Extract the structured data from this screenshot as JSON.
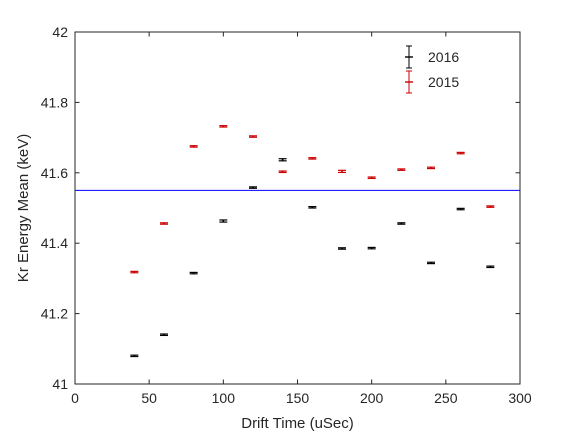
{
  "chart_data": {
    "type": "scatter",
    "title": "",
    "xlabel": "Drift Time (uSec)",
    "ylabel": "Kr Energy Mean (keV)",
    "xlim": [
      0,
      300
    ],
    "ylim": [
      41,
      42
    ],
    "xticks": [
      0,
      50,
      100,
      150,
      200,
      250,
      300
    ],
    "yticks": [
      41,
      41.2,
      41.4,
      41.6,
      41.8,
      42
    ],
    "xtick_labels": [
      "0",
      "50",
      "100",
      "150",
      "200",
      "250",
      "300"
    ],
    "ytick_labels": [
      "41",
      "41.2",
      "41.4",
      "41.6",
      "41.8",
      "42"
    ],
    "grid": false,
    "legend_position": "top-right",
    "reference_line": {
      "y": 41.55,
      "color": "#0000ff"
    },
    "series": [
      {
        "name": "2016",
        "color": "#000000",
        "marker": "point-with-errorbar",
        "x": [
          40,
          60,
          80,
          100,
          120,
          140,
          160,
          180,
          200,
          220,
          240,
          260,
          280
        ],
        "y": [
          41.08,
          41.14,
          41.315,
          41.463,
          41.558,
          41.637,
          41.502,
          41.385,
          41.386,
          41.456,
          41.344,
          41.497,
          41.333
        ],
        "err": [
          0.002,
          0.002,
          0.002,
          0.003,
          0.002,
          0.003,
          0.002,
          0.002,
          0.002,
          0.002,
          0.002,
          0.002,
          0.002
        ]
      },
      {
        "name": "2015",
        "color": "#cc0000",
        "marker": "point-with-errorbar",
        "x": [
          40,
          60,
          80,
          100,
          120,
          140,
          160,
          180,
          200,
          220,
          240,
          260,
          280
        ],
        "y": [
          41.318,
          41.456,
          41.675,
          41.732,
          41.703,
          41.603,
          41.641,
          41.604,
          41.586,
          41.609,
          41.614,
          41.656,
          41.504
        ],
        "err": [
          0.002,
          0.002,
          0.002,
          0.002,
          0.002,
          0.002,
          0.002,
          0.003,
          0.002,
          0.002,
          0.002,
          0.002,
          0.002
        ]
      }
    ]
  }
}
